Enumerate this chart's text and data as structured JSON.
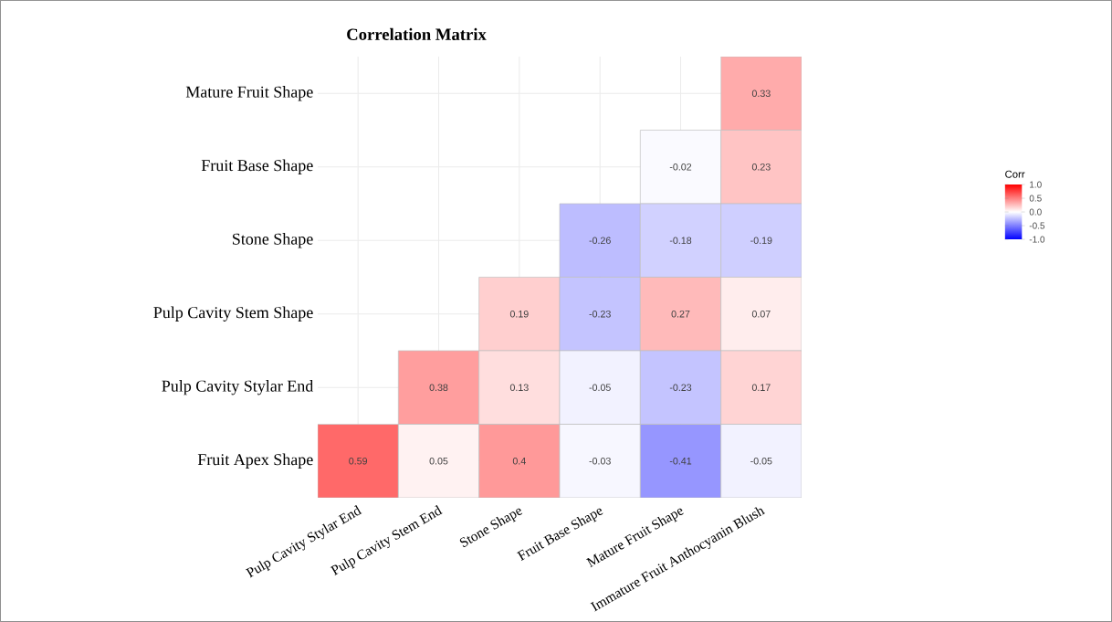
{
  "chart_data": {
    "type": "heatmap",
    "title": "Correlation Matrix",
    "clabel": "Corr",
    "categories": [
      "Pulp Cavity Stylar End",
      "Pulp Cavity Stem End",
      "Stone Shape",
      "Fruit Base Shape",
      "Mature Fruit Shape",
      "Immature Fruit Anthocyanin Blush"
    ],
    "y_categories": [
      "Mature Fruit Shape",
      "Fruit Base Shape",
      "Stone Shape",
      "Pulp Cavity Stem Shape",
      "Pulp Cavity Stylar End",
      "Fruit Apex Shape"
    ],
    "cells": [
      [
        null,
        null,
        null,
        null,
        null,
        0.33
      ],
      [
        null,
        null,
        null,
        null,
        -0.02,
        0.23
      ],
      [
        null,
        null,
        null,
        -0.26,
        -0.18,
        -0.19
      ],
      [
        null,
        null,
        0.19,
        -0.23,
        0.27,
        0.07
      ],
      [
        null,
        0.38,
        0.13,
        -0.05,
        -0.23,
        0.17
      ],
      [
        0.59,
        0.05,
        0.4,
        -0.03,
        -0.41,
        -0.05
      ]
    ],
    "data_labels": true,
    "clim": [
      -1,
      1
    ],
    "cticks": [
      {
        "value": -1,
        "label": "-1.0"
      },
      {
        "value": -0.5,
        "label": "-0.5"
      },
      {
        "value": 0,
        "label": "0.0"
      },
      {
        "value": 0.5,
        "label": "0.5"
      },
      {
        "value": 1,
        "label": "1.0"
      }
    ],
    "grid": true
  }
}
